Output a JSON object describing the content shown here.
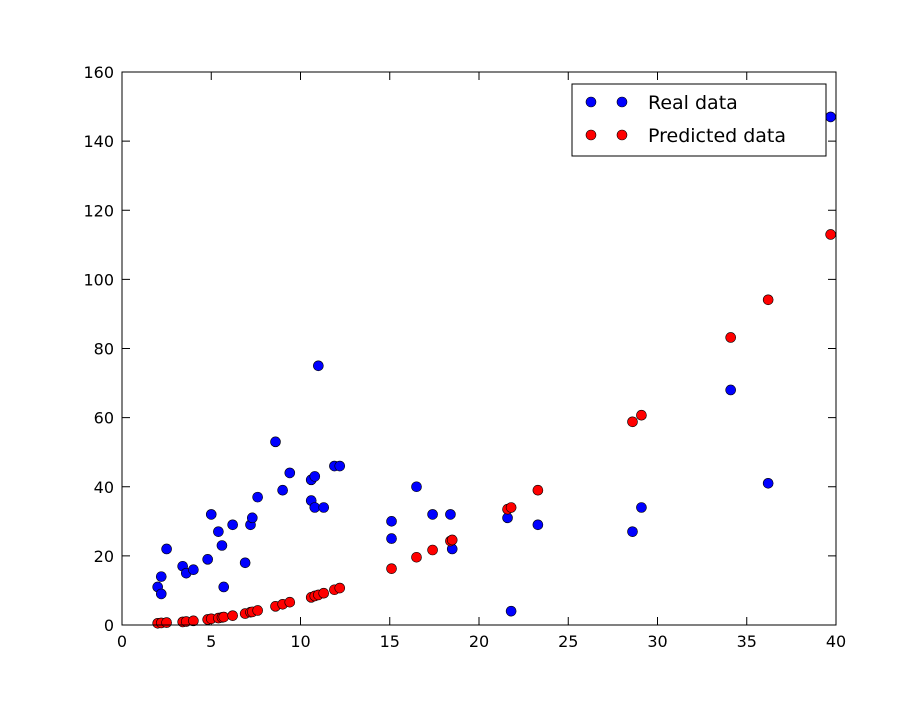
{
  "chart_data": {
    "type": "scatter",
    "title": "",
    "xlabel": "",
    "ylabel": "",
    "xlim": [
      0,
      40
    ],
    "ylim": [
      0,
      160
    ],
    "x_ticks": [
      "0",
      "5",
      "10",
      "15",
      "20",
      "25",
      "30",
      "35",
      "40"
    ],
    "y_ticks": [
      "0",
      "20",
      "40",
      "60",
      "80",
      "100",
      "120",
      "140",
      "160"
    ],
    "grid": false,
    "legend": {
      "placement": "top-right"
    },
    "series": [
      {
        "name": "Real data",
        "color": "#0000ff",
        "points": [
          [
            2.0,
            11
          ],
          [
            2.2,
            14
          ],
          [
            2.2,
            9
          ],
          [
            2.5,
            22
          ],
          [
            3.4,
            17
          ],
          [
            3.6,
            15
          ],
          [
            4.0,
            16
          ],
          [
            4.8,
            19
          ],
          [
            5.0,
            32
          ],
          [
            5.4,
            27
          ],
          [
            5.6,
            23
          ],
          [
            5.7,
            11
          ],
          [
            6.2,
            29
          ],
          [
            6.9,
            18
          ],
          [
            7.2,
            29
          ],
          [
            7.3,
            31
          ],
          [
            7.6,
            37
          ],
          [
            8.6,
            53
          ],
          [
            9.0,
            39
          ],
          [
            9.4,
            44
          ],
          [
            10.6,
            36
          ],
          [
            10.6,
            42
          ],
          [
            10.8,
            43
          ],
          [
            10.8,
            34
          ],
          [
            11.0,
            75
          ],
          [
            11.3,
            34
          ],
          [
            11.9,
            46
          ],
          [
            12.2,
            46
          ],
          [
            15.1,
            30
          ],
          [
            15.1,
            25
          ],
          [
            16.5,
            40
          ],
          [
            17.4,
            32
          ],
          [
            18.4,
            32
          ],
          [
            18.5,
            22
          ],
          [
            21.6,
            31
          ],
          [
            21.8,
            4
          ],
          [
            23.3,
            29
          ],
          [
            28.6,
            27
          ],
          [
            29.1,
            34
          ],
          [
            34.1,
            68
          ],
          [
            36.2,
            41
          ],
          [
            39.7,
            147
          ]
        ]
      },
      {
        "name": "Predicted data",
        "color": "#ff0000",
        "points": [
          [
            2.0,
            0.5
          ],
          [
            2.2,
            0.6
          ],
          [
            2.5,
            0.7
          ],
          [
            3.4,
            0.9
          ],
          [
            3.6,
            1.0
          ],
          [
            4.0,
            1.2
          ],
          [
            4.8,
            1.6
          ],
          [
            5.0,
            1.8
          ],
          [
            5.4,
            2.0
          ],
          [
            5.6,
            2.2
          ],
          [
            5.7,
            2.3
          ],
          [
            6.2,
            2.7
          ],
          [
            6.9,
            3.3
          ],
          [
            7.2,
            3.7
          ],
          [
            7.3,
            3.8
          ],
          [
            7.6,
            4.2
          ],
          [
            8.6,
            5.4
          ],
          [
            9.0,
            6.0
          ],
          [
            9.4,
            6.6
          ],
          [
            10.6,
            8.0
          ],
          [
            10.8,
            8.4
          ],
          [
            11.0,
            8.7
          ],
          [
            11.3,
            9.2
          ],
          [
            11.9,
            10.2
          ],
          [
            12.2,
            10.7
          ],
          [
            15.1,
            16.3
          ],
          [
            16.5,
            19.6
          ],
          [
            17.4,
            21.7
          ],
          [
            18.4,
            24.3
          ],
          [
            18.5,
            24.6
          ],
          [
            21.6,
            33.5
          ],
          [
            21.8,
            34.0
          ],
          [
            23.3,
            39.0
          ],
          [
            28.6,
            58.8
          ],
          [
            29.1,
            60.7
          ],
          [
            34.1,
            83.2
          ],
          [
            36.2,
            94.1
          ],
          [
            39.7,
            113
          ]
        ]
      }
    ]
  }
}
